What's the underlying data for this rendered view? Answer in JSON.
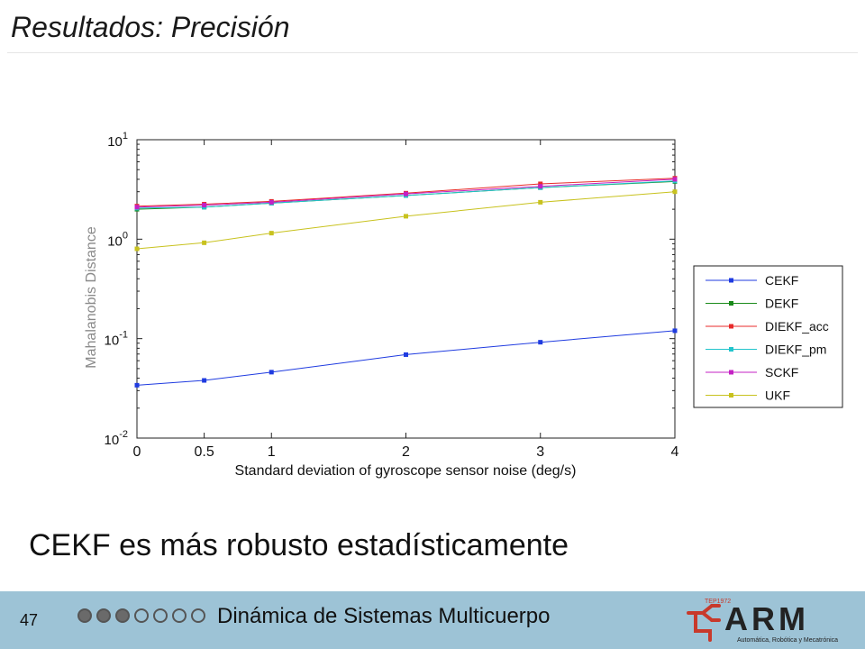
{
  "slide": {
    "title": "Resultados: Precisión",
    "subtitle": "CEKF es más robusto estadísticamente"
  },
  "footer": {
    "page_number": "47",
    "progress": {
      "filled": 3,
      "total": 7
    },
    "course": "Dinámica de Sistemas Multicuerpo",
    "logo_text": "ARM",
    "logo_small_text": "TEP1972",
    "logo_tagline": "Automática, Robótica y Mecatrónica"
  },
  "colors": {
    "CEKF": "#1f3be0",
    "DEKF": "#1a8a1a",
    "DIEKF_acc": "#e82b2b",
    "DIEKF_pm": "#22c4cc",
    "SCKF": "#c421c4",
    "UKF": "#c8c21e",
    "footer_bg": "#9dc3d6",
    "logo_red": "#c8392b"
  },
  "chart_data": {
    "type": "line",
    "xlabel": "Standard deviation of gyroscope sensor noise (deg/s)",
    "ylabel": "Mahalanobis Distance",
    "x": [
      0,
      0.5,
      1,
      2,
      3,
      4
    ],
    "x_ticks": [
      "0",
      "0.5",
      "1",
      "2",
      "3",
      "4"
    ],
    "xlim": [
      0,
      4
    ],
    "ylim": [
      0.01,
      10
    ],
    "yscale": "log",
    "y_ticks": [
      {
        "value": 10,
        "base": "10",
        "exp": "1"
      },
      {
        "value": 1,
        "base": "10",
        "exp": "0"
      },
      {
        "value": 0.1,
        "base": "10",
        "exp": "-1"
      },
      {
        "value": 0.01,
        "base": "10",
        "exp": "-2"
      }
    ],
    "grid": false,
    "legend_position": "right",
    "series": [
      {
        "name": "CEKF",
        "values": [
          0.034,
          0.038,
          0.046,
          0.069,
          0.092,
          0.12
        ]
      },
      {
        "name": "DEKF",
        "values": [
          2.0,
          2.1,
          2.3,
          2.75,
          3.3,
          3.8
        ]
      },
      {
        "name": "DIEKF_acc",
        "values": [
          2.15,
          2.25,
          2.4,
          2.9,
          3.6,
          4.1
        ]
      },
      {
        "name": "DIEKF_pm",
        "values": [
          2.05,
          2.1,
          2.3,
          2.75,
          3.3,
          3.85
        ]
      },
      {
        "name": "SCKF",
        "values": [
          2.1,
          2.2,
          2.35,
          2.85,
          3.4,
          4.0
        ]
      },
      {
        "name": "UKF",
        "values": [
          0.8,
          0.92,
          1.15,
          1.7,
          2.35,
          3.0
        ]
      }
    ]
  }
}
